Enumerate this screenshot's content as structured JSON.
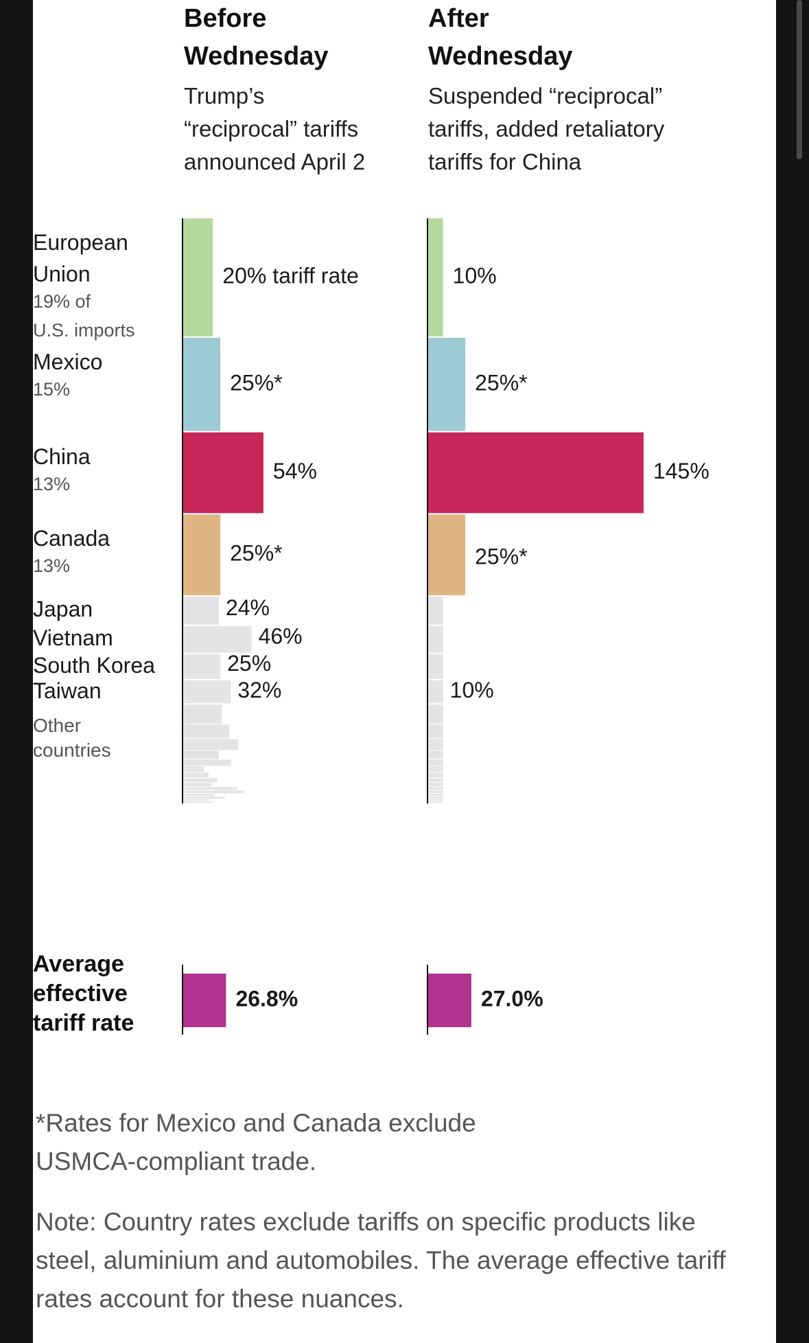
{
  "colors": {
    "european_union": "#b5d99c",
    "mexico": "#9ecbd3",
    "china": "#c8265a",
    "canada": "#e0b584",
    "other": "#e4e4e6",
    "average": "#b1328f"
  },
  "columns": [
    {
      "title": "Before\nWednesday",
      "subtitle": "Trump’s\n“reciprocal” tariffs\nannounced April 2"
    },
    {
      "title": "After\nWednesday",
      "subtitle": "Suspended “reciprocal”\ntariffs, added retaliatory\ntariffs for China"
    }
  ],
  "chart_data": {
    "type": "bar",
    "orientation": "horizontal",
    "bar_height_encodes": "share of U.S. imports",
    "bar_length_encodes": "tariff rate (%)",
    "countries": [
      {
        "name": "European\nUnion",
        "share_label": "19% of\nU.S. imports",
        "share": 19,
        "color_key": "european_union",
        "before": 20,
        "after": 10,
        "before_label": "20% tariff rate",
        "after_label": "10%"
      },
      {
        "name": "Mexico",
        "share_label": "15%",
        "share": 15,
        "color_key": "mexico",
        "before": 25,
        "after": 25,
        "before_label": "25%*",
        "after_label": "25%*"
      },
      {
        "name": "China",
        "share_label": "13%",
        "share": 13,
        "color_key": "china",
        "before": 54,
        "after": 145,
        "before_label": "54%",
        "after_label": "145%"
      },
      {
        "name": "Canada",
        "share_label": "13%",
        "share": 13,
        "color_key": "canada",
        "before": 25,
        "after": 25,
        "before_label": "25%*",
        "after_label": "25%*"
      },
      {
        "name": "Japan",
        "share_label": "",
        "share": 4.5,
        "color_key": "other",
        "before": 24,
        "after": 10,
        "before_label": "24%",
        "after_label": ""
      },
      {
        "name": "Vietnam",
        "share_label": "",
        "share": 4.3,
        "color_key": "other",
        "before": 46,
        "after": 10,
        "before_label": "46%",
        "after_label": ""
      },
      {
        "name": "South Korea",
        "share_label": "",
        "share": 4.0,
        "color_key": "other",
        "before": 25,
        "after": 10,
        "before_label": "25%",
        "after_label": ""
      },
      {
        "name": "Taiwan",
        "share_label": "",
        "share": 3.7,
        "color_key": "other",
        "before": 32,
        "after": 10,
        "before_label": "32%",
        "after_label": "10%"
      }
    ],
    "other_countries": {
      "label": "Other\ncountries",
      "color_key": "other",
      "after": 10,
      "before": [
        26,
        31,
        37,
        24,
        32,
        14,
        17,
        23,
        19,
        36,
        41,
        21,
        28,
        17,
        20
      ]
    },
    "average": {
      "label": "Average\neffective\ntariff rate",
      "color_key": "average",
      "before": 26.8,
      "after": 27.0,
      "before_label": "26.8%",
      "after_label": "27.0%"
    }
  },
  "footnotes": {
    "asterisk": "*Rates for Mexico and Canada exclude USMCA-compliant trade.",
    "note": "Note: Country rates exclude tariffs on specific products like steel, aluminium and automobiles. The average effective tariff rates account for these nuances."
  }
}
